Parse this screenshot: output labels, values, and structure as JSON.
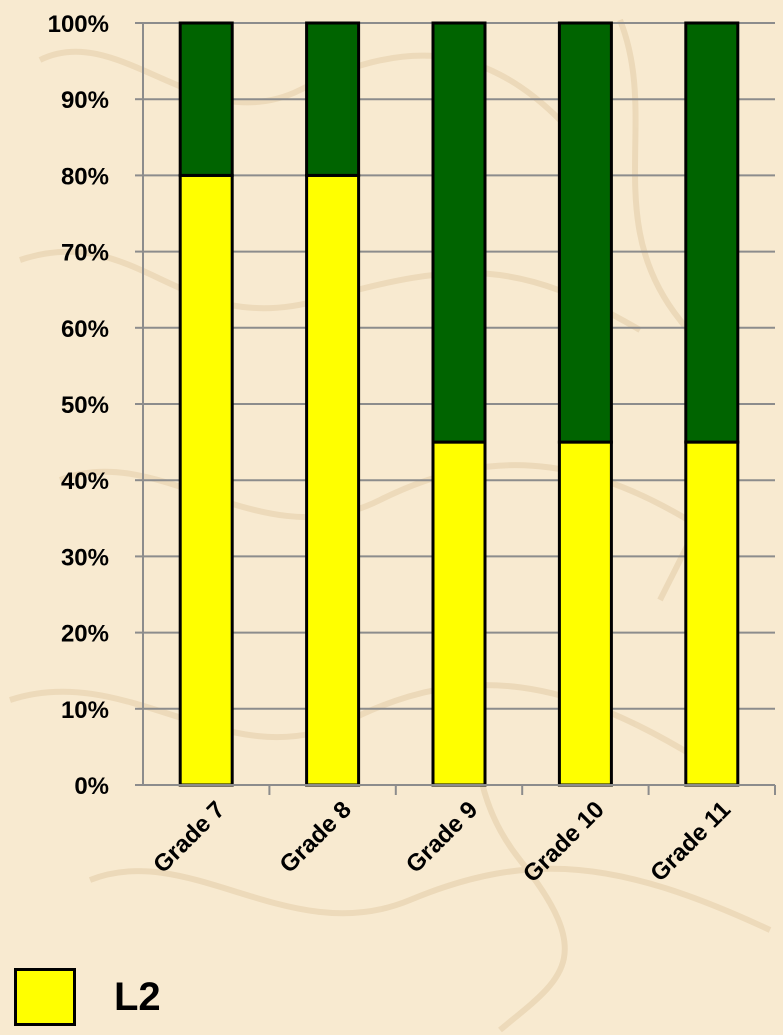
{
  "chart_data": {
    "type": "bar",
    "stacked": true,
    "categories": [
      "Grade 7",
      "Grade 8",
      "Grade 9",
      "Grade 10",
      "Grade 11"
    ],
    "series": [
      {
        "name": "L2",
        "color": "#ffff00",
        "values": [
          80,
          80,
          45,
          45,
          45
        ]
      },
      {
        "color": "#006400",
        "values": [
          20,
          20,
          55,
          55,
          55
        ]
      }
    ],
    "y_ticks": [
      "0%",
      "10%",
      "20%",
      "30%",
      "40%",
      "50%",
      "60%",
      "70%",
      "80%",
      "90%",
      "100%"
    ],
    "ylim": [
      0,
      100
    ],
    "grid": true,
    "legend_position": "bottom-left"
  },
  "legend": {
    "label": "L2",
    "color": "#ffff00"
  }
}
